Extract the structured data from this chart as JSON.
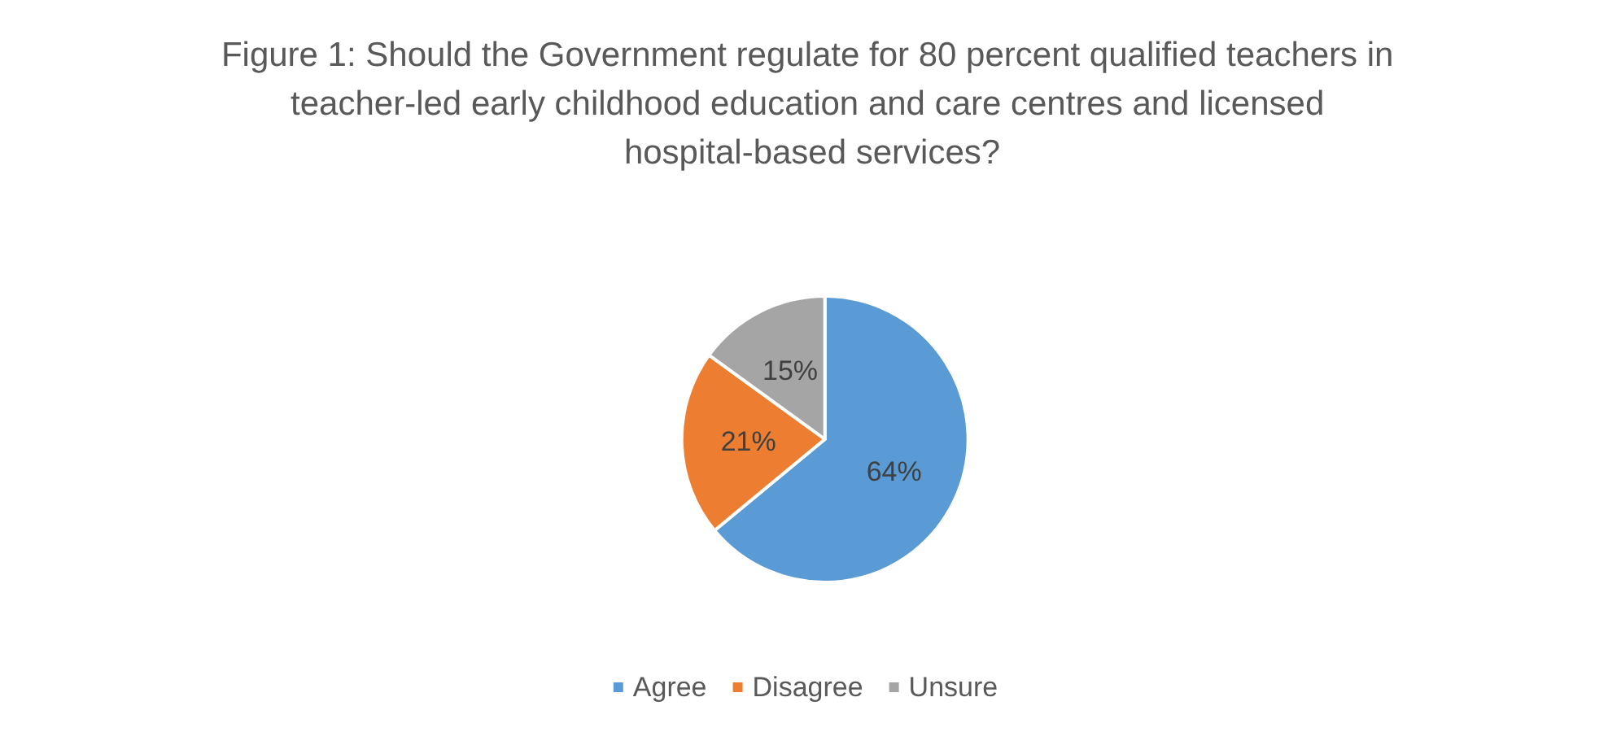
{
  "chart_data": {
    "type": "pie",
    "title": "Figure 1: Should the Government regulate for 80 percent qualified teachers in teacher-led early childhood education and care centres and licensed hospital-based services?",
    "categories": [
      "Agree",
      "Disagree",
      "Unsure"
    ],
    "values": [
      64,
      21,
      15
    ],
    "colors": [
      "#5b9bd5",
      "#ed7d31",
      "#a5a5a5"
    ],
    "value_labels": [
      "64%",
      "21%",
      "15%"
    ],
    "legend": "bottom"
  }
}
